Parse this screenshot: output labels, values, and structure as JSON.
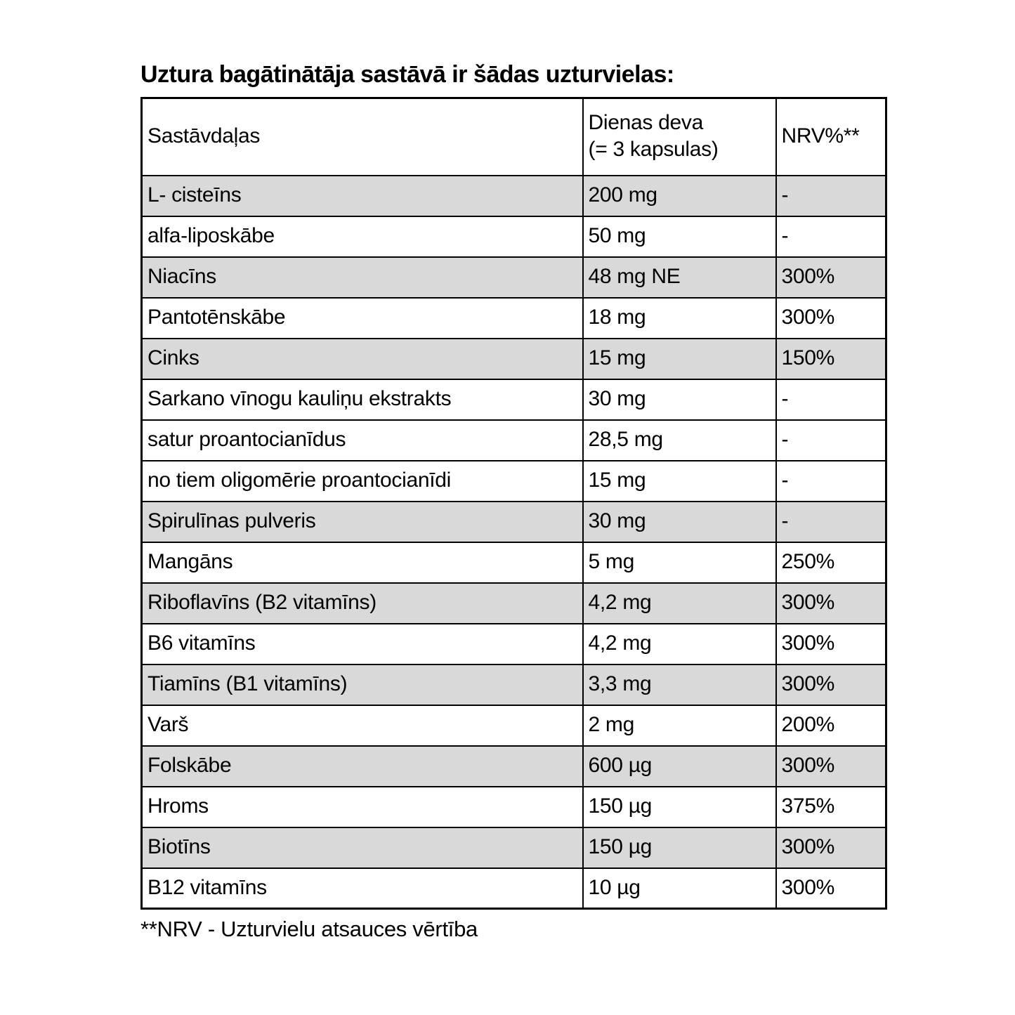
{
  "page": {
    "title": "Uztura bagātinātāja sastāvā ir šādas uzturvielas:",
    "footnote": "**NRV - Uzturvielu atsauces vērtība"
  },
  "table": {
    "header": {
      "ingredients": "Sastāvdaļas",
      "dose_line1": "Dienas deva",
      "dose_line2": "(= 3 kapsulas)",
      "nrv": "NRV%**"
    },
    "rows": [
      {
        "name": "L- cisteīns",
        "dose": "200 mg",
        "nrv": "-",
        "shaded": true
      },
      {
        "name": "alfa-liposkābe",
        "dose": "50 mg",
        "nrv": "-",
        "shaded": false
      },
      {
        "name": "Niacīns",
        "dose": "48 mg NE",
        "nrv": "300%",
        "shaded": true
      },
      {
        "name": "Pantotēnskābe",
        "dose": "18 mg",
        "nrv": "300%",
        "shaded": false
      },
      {
        "name": "Cinks",
        "dose": "15 mg",
        "nrv": "150%",
        "shaded": true
      },
      {
        "name": "Sarkano vīnogu kauliņu ekstrakts",
        "dose": "30 mg",
        "nrv": "-",
        "shaded": false
      },
      {
        "name": "satur proantocianīdus",
        "dose": "28,5 mg",
        "nrv": "-",
        "shaded": false
      },
      {
        "name": "no tiem oligomērie proantocianīdi",
        "dose": "15 mg",
        "nrv": "-",
        "shaded": false
      },
      {
        "name": "Spirulīnas pulveris",
        "dose": "30 mg",
        "nrv": "-",
        "shaded": true
      },
      {
        "name": "Mangāns",
        "dose": "5 mg",
        "nrv": "250%",
        "shaded": false
      },
      {
        "name": "Riboflavīns (B2 vitamīns)",
        "dose": "4,2 mg",
        "nrv": "300%",
        "shaded": true
      },
      {
        "name": "B6 vitamīns",
        "dose": "4,2 mg",
        "nrv": "300%",
        "shaded": false
      },
      {
        "name": "Tiamīns (B1 vitamīns)",
        "dose": "3,3 mg",
        "nrv": "300%",
        "shaded": true
      },
      {
        "name": "Varš",
        "dose": "2 mg",
        "nrv": "200%",
        "shaded": false
      },
      {
        "name": "Folskābe",
        "dose": "600 µg",
        "nrv": "300%",
        "shaded": true
      },
      {
        "name": "Hroms",
        "dose": "150 µg",
        "nrv": "375%",
        "shaded": false
      },
      {
        "name": "Biotīns",
        "dose": "150 µg",
        "nrv": "300%",
        "shaded": true
      },
      {
        "name": "B12 vitamīns",
        "dose": "10 µg",
        "nrv": "300%",
        "shaded": false
      }
    ]
  },
  "colors": {
    "row_shade": "#d9d9d9",
    "border": "#000000",
    "text": "#000000",
    "background": "#ffffff"
  }
}
